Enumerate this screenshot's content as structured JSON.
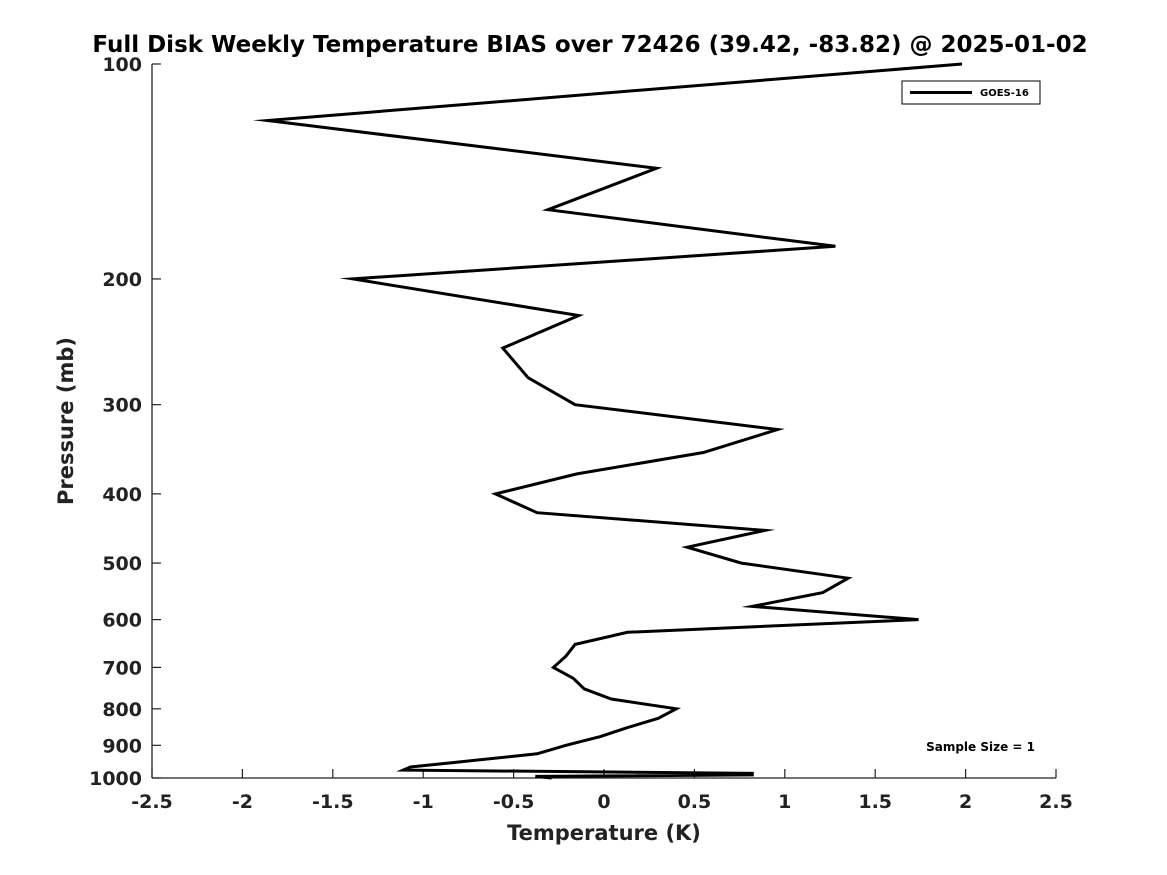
{
  "chart_data": {
    "type": "line",
    "title": "Full Disk Weekly Temperature BIAS over 72426 (39.42, -83.82) @ 2025-01-02",
    "xlabel": "Temperature (K)",
    "ylabel": "Pressure (mb)",
    "xlim": [
      -2.5,
      2.5
    ],
    "ylim": [
      100,
      1000
    ],
    "y_scale": "log",
    "y_reversed": true,
    "x_ticks": [
      -2.5,
      -2,
      -1.5,
      -1,
      -0.5,
      0,
      0.5,
      1,
      1.5,
      2,
      2.5
    ],
    "x_tick_labels": [
      "-2.5",
      "-2",
      "-1.5",
      "-1",
      "-0.5",
      "0",
      "0.5",
      "1",
      "1.5",
      "2",
      "2.5"
    ],
    "y_ticks": [
      100,
      200,
      300,
      400,
      500,
      600,
      700,
      800,
      900,
      1000
    ],
    "y_tick_labels": [
      "100",
      "200",
      "300",
      "400",
      "500",
      "600",
      "700",
      "800",
      "900",
      "1000"
    ],
    "grid": false,
    "legend_position": "top-right",
    "annotation": "Sample Size = 1",
    "series": [
      {
        "name": "GOES-16",
        "color": "#000000",
        "points": [
          {
            "x": 1.98,
            "y": 100
          },
          {
            "x": -1.86,
            "y": 120
          },
          {
            "x": 0.29,
            "y": 140
          },
          {
            "x": -0.31,
            "y": 160
          },
          {
            "x": 1.28,
            "y": 180
          },
          {
            "x": -1.39,
            "y": 200
          },
          {
            "x": -0.14,
            "y": 225
          },
          {
            "x": -0.56,
            "y": 250
          },
          {
            "x": -0.42,
            "y": 275
          },
          {
            "x": -0.16,
            "y": 300
          },
          {
            "x": 0.96,
            "y": 325
          },
          {
            "x": 0.55,
            "y": 350
          },
          {
            "x": -0.15,
            "y": 375
          },
          {
            "x": -0.6,
            "y": 400
          },
          {
            "x": -0.37,
            "y": 425
          },
          {
            "x": 0.89,
            "y": 450
          },
          {
            "x": 0.46,
            "y": 475
          },
          {
            "x": 0.76,
            "y": 500
          },
          {
            "x": 1.35,
            "y": 525
          },
          {
            "x": 1.21,
            "y": 550
          },
          {
            "x": 0.82,
            "y": 575
          },
          {
            "x": 1.74,
            "y": 600
          },
          {
            "x": 0.13,
            "y": 625
          },
          {
            "x": -0.16,
            "y": 650
          },
          {
            "x": -0.21,
            "y": 675
          },
          {
            "x": -0.28,
            "y": 700
          },
          {
            "x": -0.17,
            "y": 725
          },
          {
            "x": -0.11,
            "y": 750
          },
          {
            "x": 0.04,
            "y": 775
          },
          {
            "x": 0.4,
            "y": 800
          },
          {
            "x": 0.3,
            "y": 825
          },
          {
            "x": 0.13,
            "y": 850
          },
          {
            "x": -0.02,
            "y": 875
          },
          {
            "x": -0.21,
            "y": 900
          },
          {
            "x": -0.37,
            "y": 925
          },
          {
            "x": -0.81,
            "y": 950
          },
          {
            "x": -1.07,
            "y": 965
          },
          {
            "x": -1.11,
            "y": 975
          },
          {
            "x": 0.82,
            "y": 985
          },
          {
            "x": 0.82,
            "y": 990
          },
          {
            "x": -0.38,
            "y": 995
          },
          {
            "x": -0.29,
            "y": 1000
          }
        ]
      }
    ]
  }
}
